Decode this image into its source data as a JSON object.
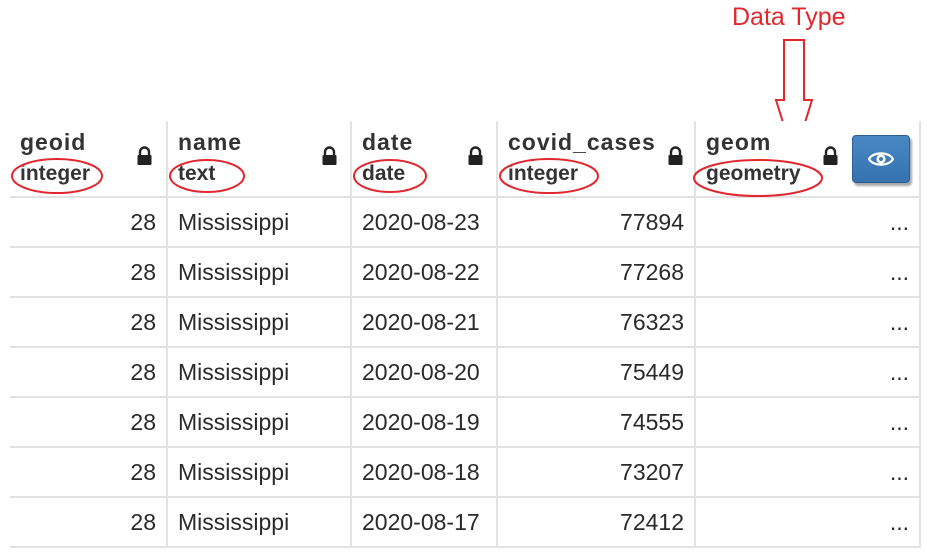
{
  "annotation": {
    "label": "Data Type"
  },
  "columns": [
    {
      "name": "geoid",
      "type": "integer"
    },
    {
      "name": "name",
      "type": "text"
    },
    {
      "name": "date",
      "type": "date"
    },
    {
      "name": "covid_cases",
      "type": "integer"
    },
    {
      "name": "geom",
      "type": "geometry"
    }
  ],
  "rows": [
    {
      "geoid": "28",
      "name": "Mississippi",
      "date": "2020-08-23",
      "covid_cases": "77894",
      "geom": "..."
    },
    {
      "geoid": "28",
      "name": "Mississippi",
      "date": "2020-08-22",
      "covid_cases": "77268",
      "geom": "..."
    },
    {
      "geoid": "28",
      "name": "Mississippi",
      "date": "2020-08-21",
      "covid_cases": "76323",
      "geom": "..."
    },
    {
      "geoid": "28",
      "name": "Mississippi",
      "date": "2020-08-20",
      "covid_cases": "75449",
      "geom": "..."
    },
    {
      "geoid": "28",
      "name": "Mississippi",
      "date": "2020-08-19",
      "covid_cases": "74555",
      "geom": "..."
    },
    {
      "geoid": "28",
      "name": "Mississippi",
      "date": "2020-08-18",
      "covid_cases": "73207",
      "geom": "..."
    },
    {
      "geoid": "28",
      "name": "Mississippi",
      "date": "2020-08-17",
      "covid_cases": "72412",
      "geom": "..."
    }
  ],
  "colors": {
    "annotation": "#e0282e",
    "eye_button": "#3b7bbb",
    "grid_line": "#e2e2e2"
  },
  "icons": {
    "lock": "lock-icon",
    "eye": "eye-icon"
  }
}
